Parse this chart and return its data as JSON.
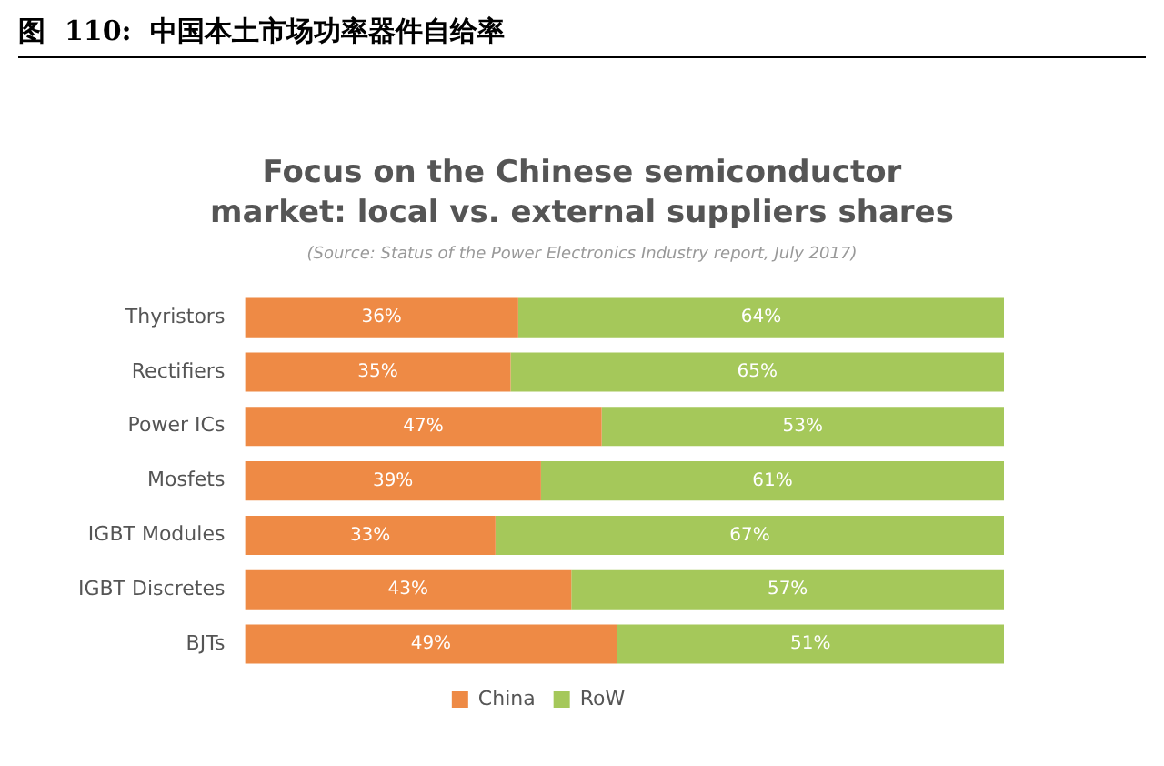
{
  "chart_data": {
    "type": "bar",
    "orientation": "horizontal",
    "stacked": true,
    "title": "图  110:  中国本土市场功率器件自给率",
    "subtitle": "Focus on the Chinese semiconductor market: local vs. external suppliers shares",
    "annotations": [
      "(Source: Status of the Power Electronics Industry report, July 2017)"
    ],
    "categories": [
      "Thyristors",
      "Rectifiers",
      "Power ICs",
      "Mosfets",
      "IGBT Modules",
      "IGBT Discretes",
      "BJTs"
    ],
    "series": [
      {
        "name": "China",
        "color": "#ee8a45",
        "values": [
          36,
          35,
          47,
          39,
          33,
          43,
          49
        ],
        "value_labels": [
          "36%",
          "35%",
          "47%",
          "39%",
          "33%",
          "43%",
          "49%"
        ]
      },
      {
        "name": "RoW",
        "color": "#a5c85a",
        "values": [
          64,
          65,
          53,
          61,
          67,
          57,
          51
        ],
        "value_labels": [
          "64%",
          "65%",
          "53%",
          "61%",
          "67%",
          "57%",
          "51%"
        ]
      }
    ],
    "legend": "bottom",
    "grid": false
  }
}
